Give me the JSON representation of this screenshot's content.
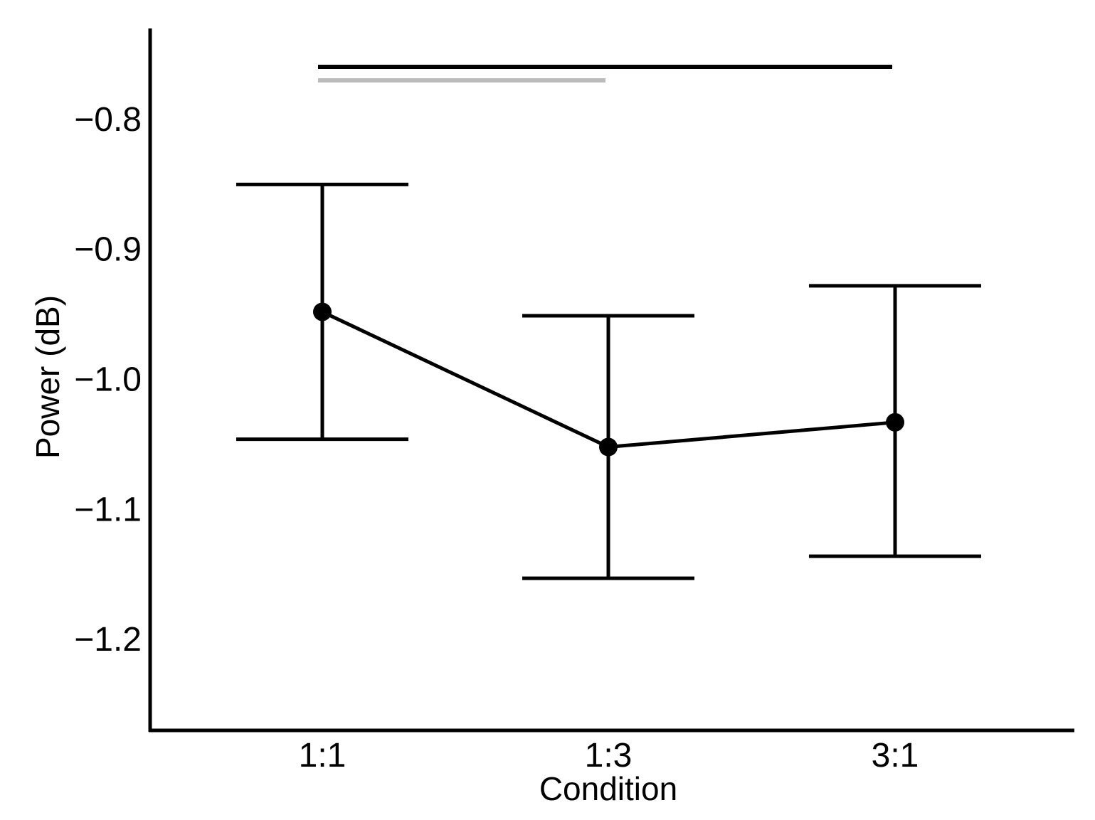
{
  "chart_data": {
    "type": "line",
    "xlabel": "Condition",
    "ylabel": "Power (dB)",
    "categories": [
      "1:1",
      "1:3",
      "3:1"
    ],
    "series": [
      {
        "values": [
          -0.948,
          -1.052,
          -1.033
        ],
        "error_low": [
          -1.046,
          -1.153,
          -1.136
        ],
        "error_high": [
          -0.85,
          -0.951,
          -0.928
        ],
        "color": "#000000"
      }
    ],
    "ylim": [
      -1.27,
      -0.73
    ],
    "yticks": [
      -0.8,
      -0.9,
      -1.0,
      -1.1,
      -1.2
    ],
    "ytick_labels": [
      "−0.8",
      "−0.9",
      "−1.0",
      "−1.1",
      "−1.2"
    ],
    "significance_bars": [
      {
        "from": "1:1",
        "to": "3:1",
        "color": "#000000"
      },
      {
        "from": "1:1",
        "to": "1:3",
        "color": "#bbbbbb"
      }
    ],
    "grid": false,
    "legend": "none"
  }
}
